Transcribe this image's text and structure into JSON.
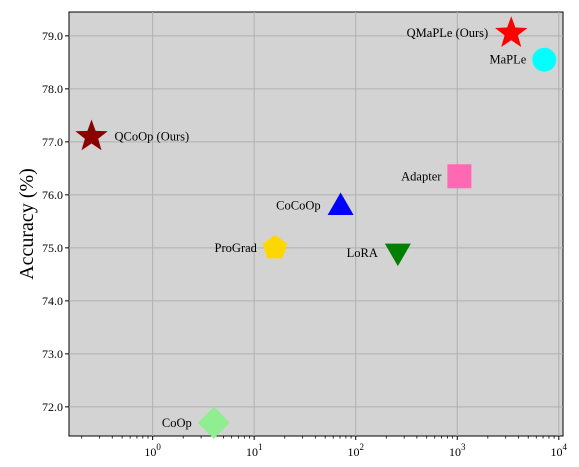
{
  "chart_data": {
    "type": "scatter",
    "title": "",
    "xlabel": "",
    "ylabel": "Accuracy (%)",
    "x_scale": "log",
    "xlim": [
      0.15,
      11000
    ],
    "ylim": [
      71.45,
      79.45
    ],
    "grid": true,
    "x_ticks": [
      {
        "value": 1,
        "base": "10",
        "exp": "0"
      },
      {
        "value": 10,
        "base": "10",
        "exp": "1"
      },
      {
        "value": 100,
        "base": "10",
        "exp": "2"
      },
      {
        "value": 1000,
        "base": "10",
        "exp": "3"
      },
      {
        "value": 10000,
        "base": "10",
        "exp": "4"
      }
    ],
    "y_ticks": [
      {
        "value": 72,
        "label": "72.0"
      },
      {
        "value": 73,
        "label": "73.0"
      },
      {
        "value": 74,
        "label": "74.0"
      },
      {
        "value": 75,
        "label": "75.0"
      },
      {
        "value": 76,
        "label": "76.0"
      },
      {
        "value": 77,
        "label": "77.0"
      },
      {
        "value": 78,
        "label": "78.0"
      },
      {
        "value": 79,
        "label": "79.0"
      }
    ],
    "points": [
      {
        "name": "QMaPLe (Ours)",
        "x": 3400,
        "y": 79.05,
        "marker": "star",
        "color": "#ff0000",
        "label_side": "left"
      },
      {
        "name": "MaPLe",
        "x": 7200,
        "y": 78.55,
        "marker": "circle",
        "color": "#00ffff",
        "label_side": "left"
      },
      {
        "name": "QCoOp (Ours)",
        "x": 0.25,
        "y": 77.1,
        "marker": "star",
        "color": "#8b0000",
        "label_side": "right"
      },
      {
        "name": "Adapter",
        "x": 1050,
        "y": 76.35,
        "marker": "square",
        "color": "#ff69b4",
        "label_side": "left"
      },
      {
        "name": "CoCoOp",
        "x": 71,
        "y": 75.8,
        "marker": "triangle-up",
        "color": "#0000ff",
        "label_side": "left"
      },
      {
        "name": "ProGrad",
        "x": 16,
        "y": 75.0,
        "marker": "pentagon",
        "color": "#ffd700",
        "label_side": "left"
      },
      {
        "name": "LoRA",
        "x": 260,
        "y": 74.9,
        "marker": "triangle-down",
        "color": "#008000",
        "label_side": "left"
      },
      {
        "name": "CoOp",
        "x": 4,
        "y": 71.7,
        "marker": "diamond",
        "color": "#90ee90",
        "label_side": "left"
      }
    ],
    "colors": {
      "plot_background": "#d3d3d3",
      "grid": "#b0b0b0"
    }
  }
}
